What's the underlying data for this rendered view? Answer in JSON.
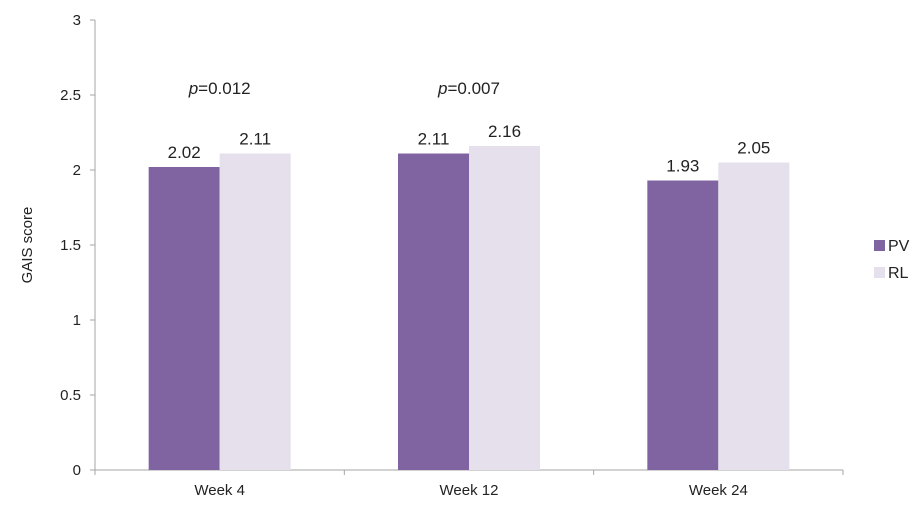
{
  "chart_data": {
    "type": "bar",
    "categories": [
      "Week 4",
      "Week 12",
      "Week 24"
    ],
    "series": [
      {
        "name": "PV",
        "color": "#8064a2",
        "values": [
          2.02,
          2.11,
          1.93
        ],
        "labels": [
          "2.02",
          "2.11",
          "1.93"
        ]
      },
      {
        "name": "RL",
        "color": "#e6e0ec",
        "values": [
          2.11,
          2.16,
          2.05
        ],
        "labels": [
          "2.11",
          "2.16",
          "2.05"
        ]
      }
    ],
    "ylabel": "GAIS score",
    "ylim": [
      0,
      3
    ],
    "yticks": [
      "0",
      "0.5",
      "1",
      "1.5",
      "2",
      "2.5",
      "3"
    ],
    "annotations": [
      {
        "prefix": "p",
        "text": "=0.012",
        "category": "Week 4"
      },
      {
        "prefix": "p",
        "text": "=0.007",
        "category": "Week 12"
      }
    ],
    "legend_position": "right",
    "grid": false
  }
}
